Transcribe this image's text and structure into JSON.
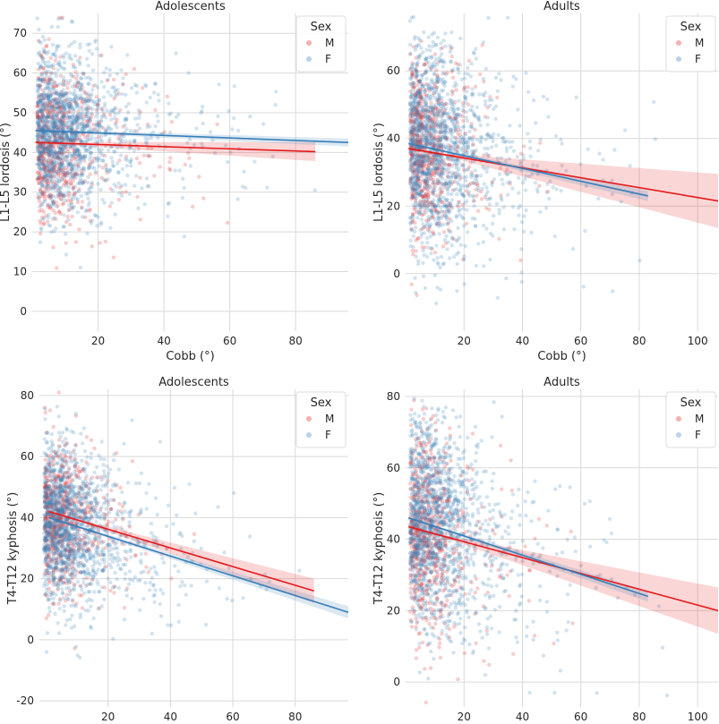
{
  "colors": {
    "M": "#e41a1c",
    "F": "#377eb8"
  },
  "chart_data": [
    {
      "type": "scatter",
      "title": "Adolescents",
      "xlabel": "Cobb (°)",
      "ylabel": "L1-L5 lordosis (°)",
      "xlim": [
        0,
        96
      ],
      "ylim": [
        -5,
        75
      ],
      "xticks": [
        20,
        40,
        60,
        80
      ],
      "yticks": [
        0,
        10,
        20,
        30,
        40,
        50,
        60,
        70
      ],
      "legend": {
        "title": "Sex",
        "entries": [
          "M",
          "F"
        ],
        "placement": "top-right"
      },
      "series": [
        {
          "name": "M",
          "fit": {
            "x": [
              1,
              86
            ],
            "y": [
              42.5,
              40.2
            ]
          },
          "ci_end": [
            37.8,
            42.6
          ],
          "cloud": {
            "x_mean": 14,
            "x_sd": 13,
            "y_mean": 42,
            "y_sd": 10,
            "n": 650
          }
        },
        {
          "name": "F",
          "fit": {
            "x": [
              1,
              96
            ],
            "y": [
              45.5,
              42.5
            ]
          },
          "ci_end": [
            41.5,
            43.5
          ],
          "cloud": {
            "x_mean": 18,
            "x_sd": 17,
            "y_mean": 45,
            "y_sd": 10,
            "n": 1500
          }
        }
      ]
    },
    {
      "type": "scatter",
      "title": "Adults",
      "xlabel": "Cobb (°)",
      "ylabel": "L1-L5 lordosis (°)",
      "xlim": [
        0,
        107
      ],
      "ylim": [
        -17,
        77
      ],
      "xticks": [
        20,
        40,
        60,
        80,
        100
      ],
      "yticks": [
        0,
        20,
        40,
        60
      ],
      "legend": {
        "title": "Sex",
        "entries": [
          "M",
          "F"
        ],
        "placement": "top-right"
      },
      "series": [
        {
          "name": "M",
          "fit": {
            "x": [
              1,
              107
            ],
            "y": [
              37,
              21.5
            ]
          },
          "ci_end": [
            13.5,
            29.5
          ],
          "cloud": {
            "x_mean": 12,
            "x_sd": 12,
            "y_mean": 36,
            "y_sd": 13,
            "n": 650
          }
        },
        {
          "name": "F",
          "fit": {
            "x": [
              1,
              83
            ],
            "y": [
              38.5,
              23
            ]
          },
          "ci_end": [
            21.5,
            24.5
          ],
          "cloud": {
            "x_mean": 20,
            "x_sd": 18,
            "y_mean": 35,
            "y_sd": 15,
            "n": 1500
          }
        }
      ]
    },
    {
      "type": "scatter",
      "title": "Adolescents",
      "xlabel": "Cobb (°)",
      "ylabel": "T4-T12 kyphosis (°)",
      "xlim": [
        -2,
        97
      ],
      "ylim": [
        -22,
        82
      ],
      "xticks": [
        20,
        40,
        60,
        80
      ],
      "yticks": [
        -20,
        0,
        20,
        40,
        60,
        80
      ],
      "legend": {
        "title": "Sex",
        "entries": [
          "M",
          "F"
        ],
        "placement": "top-right"
      },
      "series": [
        {
          "name": "M",
          "fit": {
            "x": [
              1,
              86
            ],
            "y": [
              42,
              16
            ]
          },
          "ci_end": [
            12,
            20
          ],
          "cloud": {
            "x_mean": 13,
            "x_sd": 12,
            "y_mean": 39,
            "y_sd": 12,
            "n": 650
          }
        },
        {
          "name": "F",
          "fit": {
            "x": [
              1,
              97
            ],
            "y": [
              40,
              9
            ]
          },
          "ci_end": [
            7,
            11
          ],
          "cloud": {
            "x_mean": 18,
            "x_sd": 17,
            "y_mean": 35,
            "y_sd": 13,
            "n": 1500
          }
        }
      ]
    },
    {
      "type": "scatter",
      "title": "Adults",
      "xlabel": "Cobb (°)",
      "ylabel": "T4-T12 kyphosis (°)",
      "xlim": [
        0,
        107
      ],
      "ylim": [
        -7,
        82
      ],
      "xticks": [
        20,
        40,
        60,
        80,
        100
      ],
      "yticks": [
        0,
        20,
        40,
        60,
        80
      ],
      "legend": {
        "title": "Sex",
        "entries": [
          "M",
          "F"
        ],
        "placement": "top-right"
      },
      "series": [
        {
          "name": "M",
          "fit": {
            "x": [
              1,
              107
            ],
            "y": [
              43.5,
              20
            ]
          },
          "ci_end": [
            13.5,
            26.5
          ],
          "cloud": {
            "x_mean": 13,
            "x_sd": 13,
            "y_mean": 40,
            "y_sd": 14,
            "n": 650
          }
        },
        {
          "name": "F",
          "fit": {
            "x": [
              1,
              83
            ],
            "y": [
              46,
              24
            ]
          },
          "ci_end": [
            22.5,
            25.5
          ],
          "cloud": {
            "x_mean": 20,
            "x_sd": 18,
            "y_mean": 40,
            "y_sd": 15,
            "n": 1500
          }
        }
      ]
    }
  ]
}
